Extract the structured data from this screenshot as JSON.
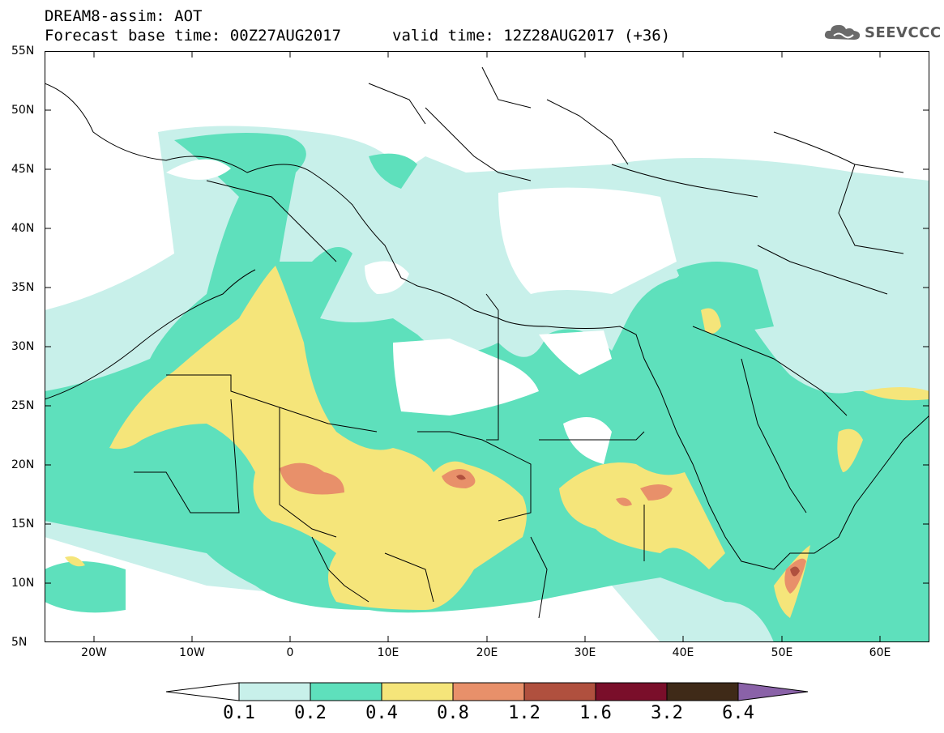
{
  "header": {
    "line1": "DREAM8-assim: AOT",
    "line2": "Forecast base time: 00Z27AUG2017",
    "valid": "valid time: 12Z28AUG2017 (+36)",
    "logo_text": "SEEVCCC",
    "logo_icon": "cloud-icon"
  },
  "map": {
    "lat_labels": [
      "55N",
      "50N",
      "45N",
      "40N",
      "35N",
      "30N",
      "25N",
      "20N",
      "15N",
      "10N",
      "5N"
    ],
    "lon_labels": [
      "20W",
      "10W",
      "0",
      "10E",
      "20E",
      "30E",
      "40E",
      "50E",
      "60E"
    ],
    "lat_range": [
      5,
      55
    ],
    "lon_range": [
      -25,
      65
    ]
  },
  "colorbar": {
    "labels": [
      "0.1",
      "0.2",
      "0.4",
      "0.8",
      "1.2",
      "1.6",
      "3.2",
      "6.4"
    ],
    "colors": [
      "#ffffff",
      "#c8f0ea",
      "#5ee0bc",
      "#f5e57a",
      "#e8906a",
      "#b0503e",
      "#7a0e2a",
      "#3f2a18",
      "#8a62a8"
    ]
  }
}
